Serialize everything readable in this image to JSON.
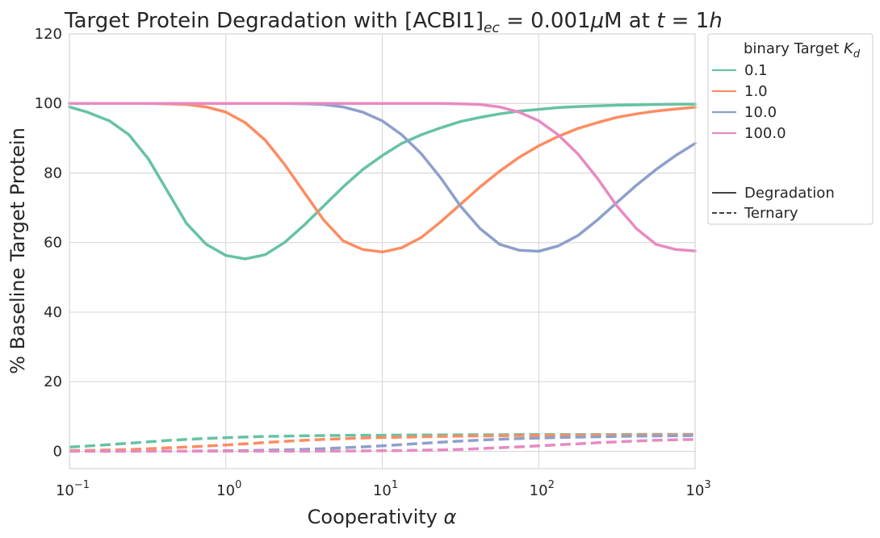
{
  "chart_data": {
    "type": "line",
    "title": {
      "prefix": "Target Protein Degradation with [ACBI1]",
      "subscript": "ec",
      "middle": " = 0.001",
      "mu": "μ",
      "unit": "M at ",
      "t_var": "t",
      "equals": " = 1",
      "h_var": "h"
    },
    "xlabel": "Cooperativity",
    "xlabel_symbol": "α",
    "ylabel": "% Baseline Target Protein",
    "x_scale": "log",
    "xlim": [
      0.1,
      1000
    ],
    "ylim": [
      -5,
      120
    ],
    "grid": true,
    "legend_placement": "outside-right",
    "x_ticks": [
      {
        "base": "10",
        "exp": "−1"
      },
      {
        "base": "10",
        "exp": "0"
      },
      {
        "base": "10",
        "exp": "1"
      },
      {
        "base": "10",
        "exp": "2"
      },
      {
        "base": "10",
        "exp": "3"
      }
    ],
    "x_tick_values": [
      0.1,
      1,
      10,
      100,
      1000
    ],
    "y_ticks": [
      "0",
      "20",
      "40",
      "60",
      "80",
      "100",
      "120"
    ],
    "y_tick_values": [
      0,
      20,
      40,
      60,
      80,
      100,
      120
    ],
    "x": [
      0.1,
      0.13,
      0.18,
      0.24,
      0.32,
      0.42,
      0.56,
      0.75,
      1,
      1.33,
      1.78,
      2.37,
      3.16,
      4.22,
      5.62,
      7.5,
      10,
      13.3,
      17.8,
      23.7,
      31.6,
      42.2,
      56.2,
      75,
      100,
      133,
      178,
      237,
      316,
      422,
      562,
      750,
      1000
    ],
    "legend_title": {
      "text": "binary Target ",
      "symbol": "K",
      "sub": "d"
    },
    "line_styles": [
      {
        "name": "Degradation",
        "dash": "solid"
      },
      {
        "name": "Ternary",
        "dash": "dashed"
      }
    ],
    "series": [
      {
        "name": "0.1",
        "color": "#66c2a5",
        "degradation": [
          99,
          97.5,
          95,
          91,
          84,
          75,
          65.5,
          59.5,
          56.3,
          55.3,
          56.5,
          60,
          65,
          70.5,
          76,
          81,
          85,
          88.5,
          91,
          93,
          94.8,
          96,
          97,
          97.8,
          98.3,
          98.8,
          99.1,
          99.3,
          99.5,
          99.6,
          99.7,
          99.8,
          99.8
        ],
        "ternary": [
          1.2,
          1.5,
          1.9,
          2.3,
          2.7,
          3.1,
          3.4,
          3.7,
          3.9,
          4.1,
          4.25,
          4.35,
          4.45,
          4.5,
          4.55,
          4.6,
          4.6,
          4.65,
          4.7,
          4.7,
          4.72,
          4.75,
          4.75,
          4.78,
          4.8,
          4.8,
          4.8,
          4.82,
          4.82,
          4.85,
          4.85,
          4.85,
          4.85
        ]
      },
      {
        "name": "1.0",
        "color": "#fc8d62",
        "degradation": [
          100,
          100,
          100,
          100,
          100,
          99.9,
          99.7,
          99,
          97.5,
          94.5,
          89.5,
          82.5,
          74.5,
          66.5,
          60.5,
          58,
          57.3,
          58.5,
          61.5,
          66,
          71,
          76,
          80.5,
          84.5,
          87.8,
          90.5,
          92.8,
          94.5,
          96,
          97,
          97.8,
          98.4,
          98.9
        ],
        "ternary": [
          0.2,
          0.25,
          0.35,
          0.5,
          0.7,
          0.95,
          1.2,
          1.5,
          1.8,
          2.15,
          2.5,
          2.85,
          3.15,
          3.4,
          3.6,
          3.8,
          3.95,
          4.05,
          4.15,
          4.25,
          4.32,
          4.4,
          4.45,
          4.5,
          4.55,
          4.6,
          4.62,
          4.65,
          4.68,
          4.7,
          4.72,
          4.75,
          4.75
        ]
      },
      {
        "name": "10.0",
        "color": "#8da0cb",
        "degradation": [
          100,
          100,
          100,
          100,
          100,
          100,
          100,
          100,
          100,
          100,
          100,
          100,
          99.9,
          99.7,
          99,
          97.5,
          95,
          91,
          85.5,
          78.5,
          70.5,
          64,
          59.5,
          57.8,
          57.5,
          59,
          62,
          66.5,
          71.5,
          76.5,
          81,
          85,
          88.5
        ],
        "ternary": [
          0,
          0,
          0,
          0,
          0.05,
          0.05,
          0.05,
          0.1,
          0.15,
          0.2,
          0.3,
          0.4,
          0.55,
          0.75,
          1,
          1.25,
          1.55,
          1.9,
          2.25,
          2.6,
          2.9,
          3.2,
          3.45,
          3.65,
          3.8,
          3.95,
          4.05,
          4.15,
          4.25,
          4.35,
          4.4,
          4.45,
          4.5
        ]
      },
      {
        "name": "100.0",
        "color": "#e78ac3",
        "degradation": [
          100,
          100,
          100,
          100,
          100,
          100,
          100,
          100,
          100,
          100,
          100,
          100,
          100,
          100,
          100,
          100,
          100,
          100,
          100,
          100,
          99.9,
          99.7,
          99,
          97.5,
          95,
          91,
          85.5,
          78.5,
          70.5,
          64,
          59.5,
          58,
          57.6
        ],
        "ternary": [
          0,
          0,
          0,
          0,
          0,
          0,
          0,
          0,
          0,
          0,
          0,
          0,
          0.02,
          0.05,
          0.05,
          0.1,
          0.15,
          0.2,
          0.3,
          0.4,
          0.55,
          0.75,
          1,
          1.25,
          1.55,
          1.85,
          2.15,
          2.45,
          2.7,
          2.95,
          3.15,
          3.3,
          3.4
        ]
      }
    ]
  }
}
